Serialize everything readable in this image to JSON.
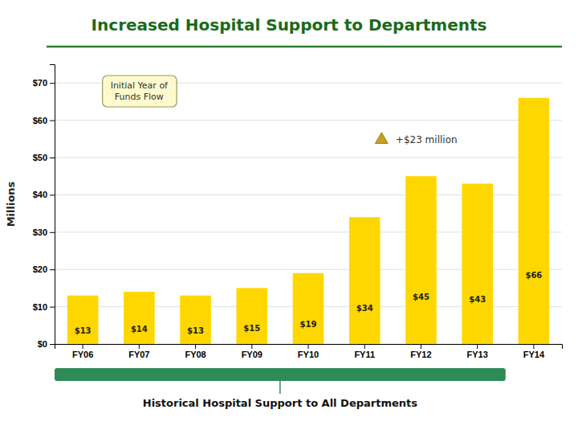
{
  "chart_data": {
    "type": "bar",
    "title": "Increased Hospital Support to Departments",
    "y_label": "Millions",
    "categories": [
      "FY06",
      "FY07",
      "FY08",
      "FY09",
      "FY10",
      "FY11",
      "FY12",
      "FY13",
      "FY14"
    ],
    "values": [
      13,
      14,
      13,
      15,
      19,
      34,
      45,
      43,
      66
    ],
    "value_labels": [
      "$13",
      "$14",
      "$13",
      "$15",
      "$19",
      "$34",
      "$45",
      "$43",
      "$66"
    ],
    "data_labels": true,
    "color": "#FFD700",
    "ylim": [
      0,
      75
    ],
    "yticks": [
      {
        "value": 0,
        "label": "$0"
      },
      {
        "value": 10,
        "label": "$10"
      },
      {
        "value": 20,
        "label": "$20"
      },
      {
        "value": 30,
        "label": "$30"
      },
      {
        "value": 40,
        "label": "$40"
      },
      {
        "value": 50,
        "label": "$50"
      },
      {
        "value": 60,
        "label": "$60"
      },
      {
        "value": 70,
        "label": "$70"
      }
    ],
    "grid": true,
    "annotations": [
      "+$23 million",
      "Initial Year of\nFunds Flow",
      "Historical Hospital Support to All Departments"
    ]
  }
}
